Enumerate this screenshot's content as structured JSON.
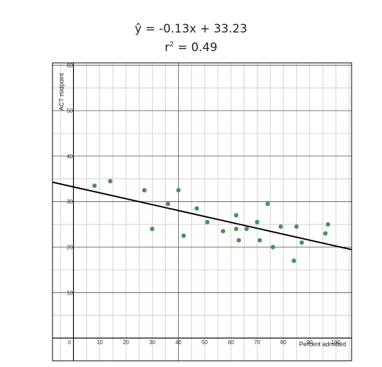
{
  "equation": {
    "line1": "ŷ = -0.13x + 33.23",
    "r2_prefix": "r",
    "r2_sup": "2",
    "r2_value": " = 0.49"
  },
  "chart_data": {
    "type": "scatter",
    "xlabel": "Percent admitted",
    "ylabel": "ACT midpoint",
    "xlim": [
      -8,
      106
    ],
    "ylim": [
      -5,
      60.5
    ],
    "x_ticks": [
      0,
      10,
      20,
      30,
      40,
      50,
      60,
      70,
      80,
      90,
      100
    ],
    "y_ticks": [
      10,
      20,
      30,
      40,
      50,
      60
    ],
    "grid": true,
    "regression": {
      "slope": -0.13,
      "intercept": 33.23
    },
    "points": [
      {
        "x": 8,
        "y": 33.5
      },
      {
        "x": 14,
        "y": 34.5
      },
      {
        "x": 27,
        "y": 32.5
      },
      {
        "x": 30,
        "y": 24
      },
      {
        "x": 36,
        "y": 29.5
      },
      {
        "x": 40,
        "y": 32.5
      },
      {
        "x": 42,
        "y": 22.5
      },
      {
        "x": 47,
        "y": 28.5
      },
      {
        "x": 51,
        "y": 25.5
      },
      {
        "x": 57,
        "y": 23.5
      },
      {
        "x": 62,
        "y": 27
      },
      {
        "x": 62,
        "y": 24
      },
      {
        "x": 63,
        "y": 21.5
      },
      {
        "x": 66,
        "y": 24
      },
      {
        "x": 70,
        "y": 25.5
      },
      {
        "x": 71,
        "y": 21.5
      },
      {
        "x": 74,
        "y": 29.5
      },
      {
        "x": 76,
        "y": 20
      },
      {
        "x": 79,
        "y": 24.5
      },
      {
        "x": 84,
        "y": 17
      },
      {
        "x": 85,
        "y": 24.5
      },
      {
        "x": 87,
        "y": 21
      },
      {
        "x": 96,
        "y": 23
      },
      {
        "x": 97,
        "y": 25
      }
    ],
    "colors": {
      "point": "#4a9350",
      "line": "#000000",
      "grid": "#c8c8c8",
      "axis": "#000000"
    }
  }
}
